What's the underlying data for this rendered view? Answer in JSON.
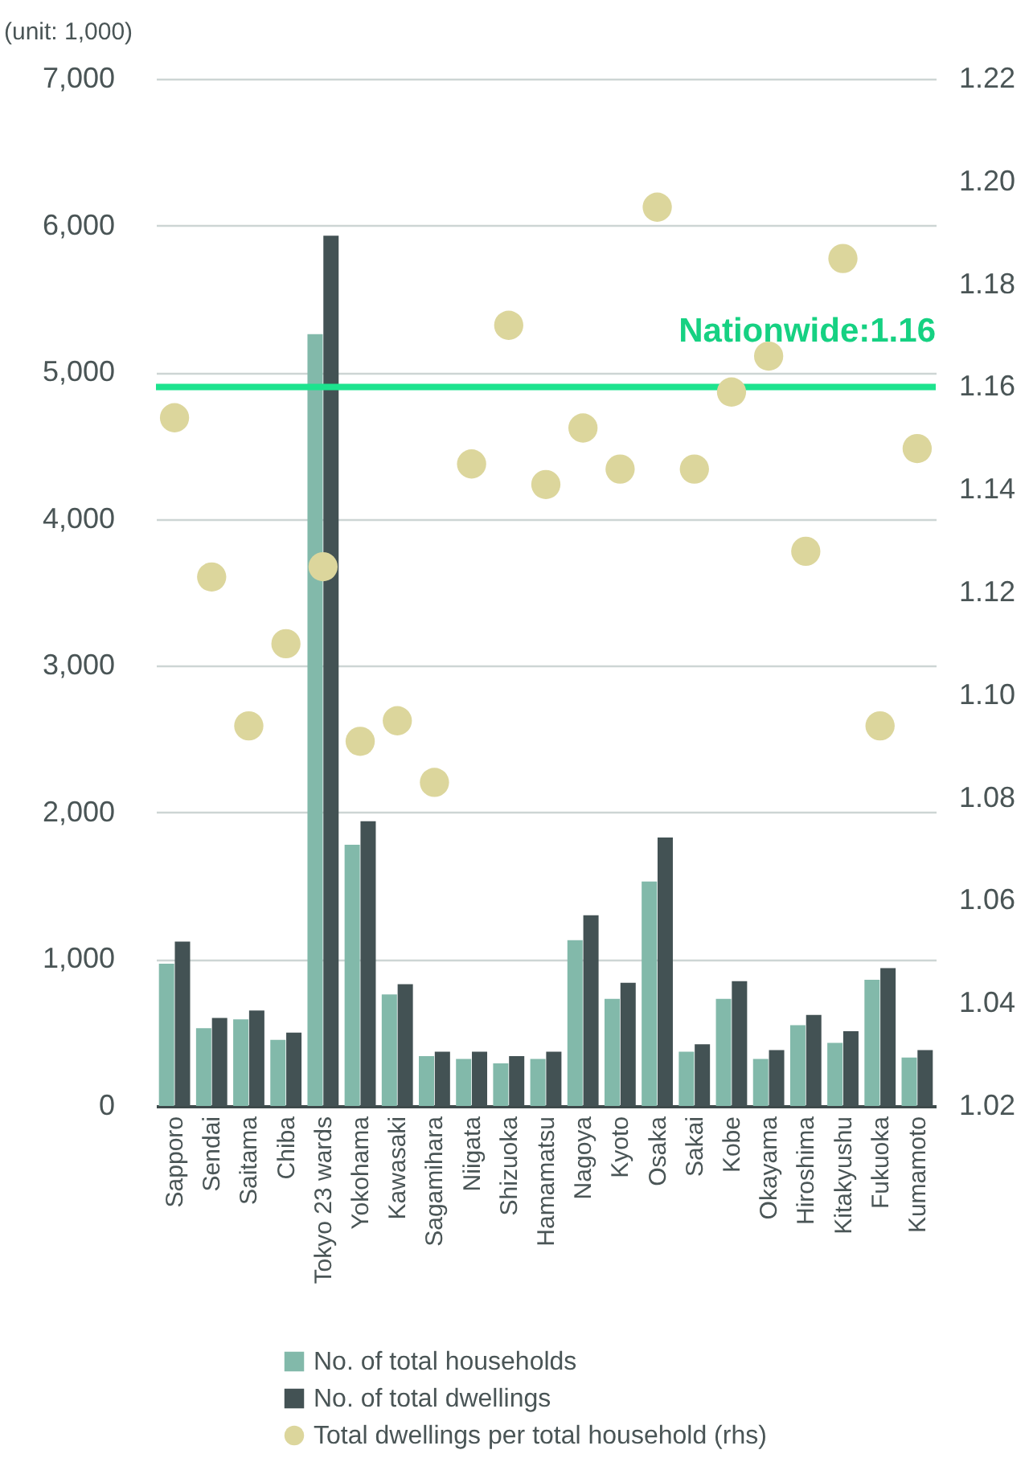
{
  "chart_data": {
    "type": "bar",
    "ylabel": "(unit: 1,000)",
    "categories": [
      "Sapporo",
      "Sendai",
      "Saitama",
      "Chiba",
      "Tokyo 23 wards",
      "Yokohama",
      "Kawasaki",
      "Sagamihara",
      "Niigata",
      "Shizuoka",
      "Hamamatsu",
      "Nagoya",
      "Kyoto",
      "Osaka",
      "Sakai",
      "Kobe",
      "Okayama",
      "Hiroshima",
      "Kitakyushu",
      "Fukuoka",
      "Kumamoto"
    ],
    "series": [
      {
        "name": "No. of total households",
        "color": "#82b9aa",
        "values": [
          970,
          530,
          590,
          450,
          5260,
          1780,
          760,
          340,
          320,
          290,
          320,
          1130,
          730,
          1530,
          370,
          730,
          320,
          550,
          430,
          860,
          330
        ]
      },
      {
        "name": "No. of total dwellings",
        "color": "#435254",
        "values": [
          1120,
          600,
          650,
          500,
          5930,
          1940,
          830,
          370,
          370,
          340,
          370,
          1300,
          840,
          1830,
          420,
          850,
          380,
          620,
          510,
          940,
          380
        ]
      },
      {
        "name": "Total dwellings per total household (rhs)",
        "type": "scatter",
        "axis": "y2",
        "marker": "circle",
        "color": "#dcd69c",
        "values": [
          1.154,
          1.123,
          1.094,
          1.11,
          1.125,
          1.091,
          1.095,
          1.083,
          1.145,
          1.172,
          1.141,
          1.152,
          1.144,
          1.195,
          1.144,
          1.159,
          1.166,
          1.128,
          1.185,
          1.094,
          1.148
        ]
      }
    ],
    "ylim": [
      0,
      7000
    ],
    "yticks": [
      {
        "value": 0,
        "label": "0"
      },
      {
        "value": 1000,
        "label": "1,000"
      },
      {
        "value": 2000,
        "label": "2,000"
      },
      {
        "value": 3000,
        "label": "3,000"
      },
      {
        "value": 4000,
        "label": "4,000"
      },
      {
        "value": 5000,
        "label": "5,000"
      },
      {
        "value": 6000,
        "label": "6,000"
      },
      {
        "value": 7000,
        "label": "7,000"
      }
    ],
    "y2lim": [
      1.02,
      1.22
    ],
    "y2ticks": [
      {
        "value": 1.02,
        "label": "1.02"
      },
      {
        "value": 1.04,
        "label": "1.04"
      },
      {
        "value": 1.06,
        "label": "1.06"
      },
      {
        "value": 1.08,
        "label": "1.08"
      },
      {
        "value": 1.1,
        "label": "1.10"
      },
      {
        "value": 1.12,
        "label": "1.12"
      },
      {
        "value": 1.14,
        "label": "1.14"
      },
      {
        "value": 1.16,
        "label": "1.16"
      },
      {
        "value": 1.18,
        "label": "1.18"
      },
      {
        "value": 1.2,
        "label": "1.20"
      },
      {
        "value": 1.22,
        "label": "1.22"
      }
    ],
    "ref_lines": [
      {
        "axis": "y2",
        "value": 1.16,
        "label": "Nationwide:1.16",
        "color": "#1de38e"
      }
    ],
    "grid": "y",
    "legend": "bottom"
  }
}
